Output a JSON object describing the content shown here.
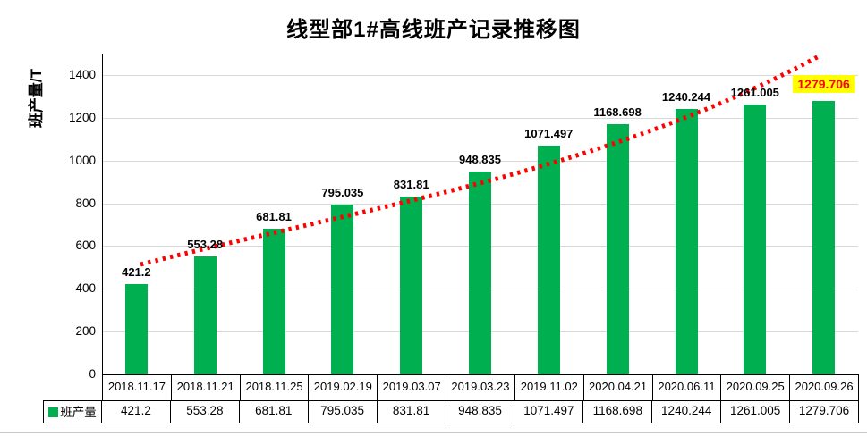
{
  "title": "线型部1#高线班产记录推移图",
  "y_axis": {
    "title": "班产量/T",
    "ticks": [
      0,
      200,
      400,
      600,
      800,
      1000,
      1200,
      1400
    ],
    "max": 1500
  },
  "legend": {
    "label": "班产量",
    "marker_color": "#00B050"
  },
  "colors": {
    "bar": "#00B050",
    "gridline": "#D9D9D9",
    "axis": "#000000",
    "trendline": "#FF0000",
    "highlight_bg": "#FFFF00",
    "highlight_text": "#FF0000",
    "table_border": "#000000",
    "bottom_rule": "#C9C9C9"
  },
  "chart_data": {
    "type": "bar",
    "title": "线型部1#高线班产记录推移图",
    "xlabel": "",
    "ylabel": "班产量/T",
    "ylim": [
      0,
      1500
    ],
    "ytick_interval": 200,
    "grid": true,
    "legend_position": "bottom-table-left",
    "categories": [
      "2018.11.17",
      "2018.11.21",
      "2018.11.25",
      "2019.02.19",
      "2019.03.07",
      "2019.03.23",
      "2019.11.02",
      "2020.04.21",
      "2020.06.11",
      "2020.09.25",
      "2020.09.26"
    ],
    "series": [
      {
        "name": "班产量",
        "color": "#00B050",
        "values": [
          421.2,
          553.28,
          681.81,
          795.035,
          831.81,
          948.835,
          1071.497,
          1168.698,
          1240.244,
          1261.005,
          1279.706
        ]
      }
    ],
    "data_labels": [
      "421.2",
      "553.28",
      "681.81",
      "795.035",
      "831.81",
      "948.835",
      "1071.497",
      "1168.698",
      "1240.244",
      "1261.005",
      "1279.706"
    ],
    "highlight_last_label": {
      "background": "#FFFF00",
      "text_color": "#FF0000"
    },
    "trendline": {
      "type": "exponential",
      "style": "dotted",
      "color": "#FF0000",
      "applies_to": "班产量"
    }
  }
}
